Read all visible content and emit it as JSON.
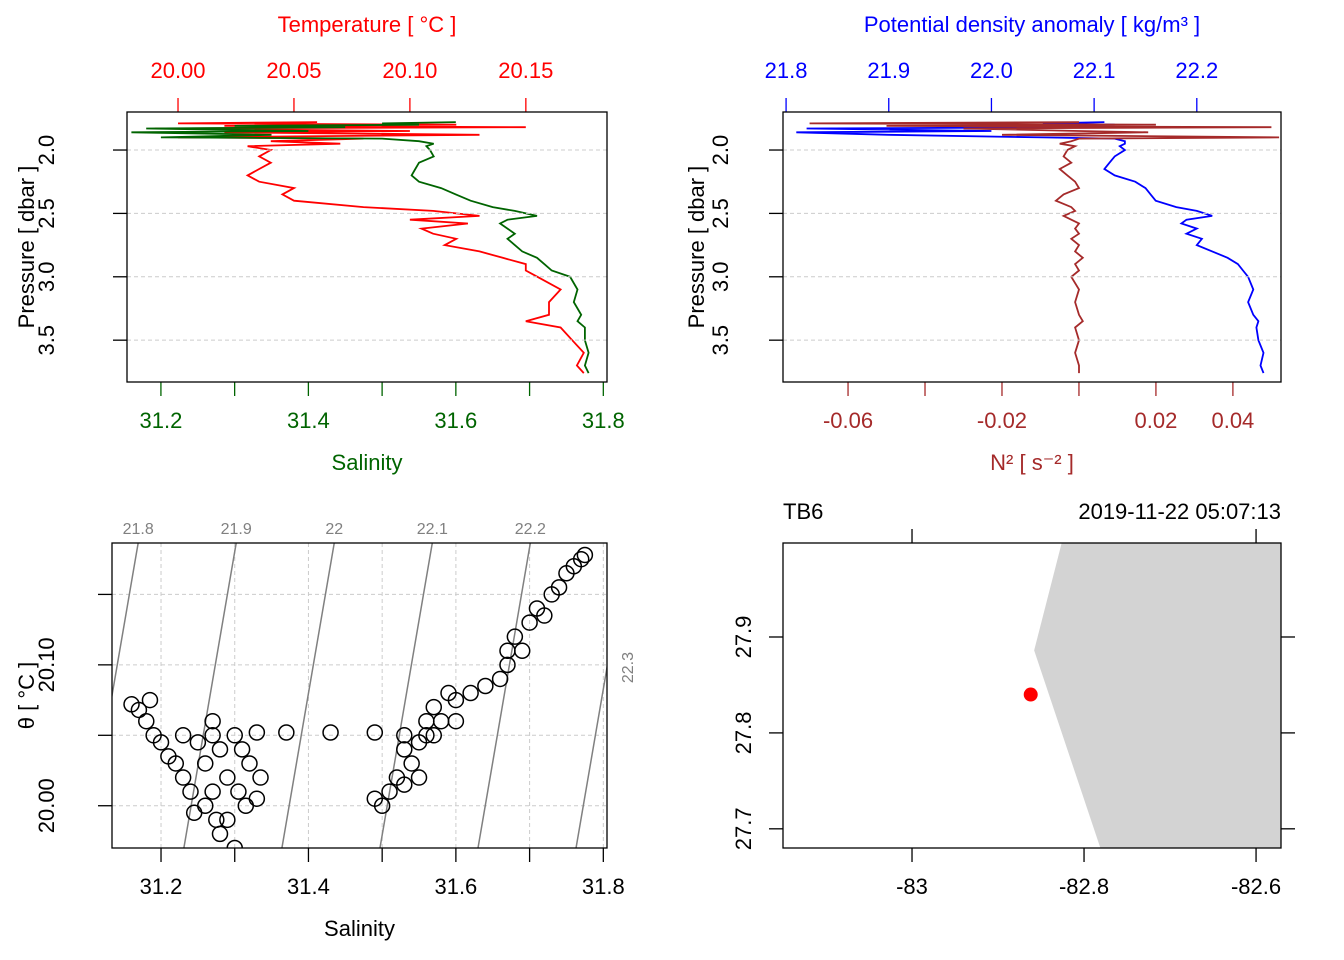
{
  "chart_data": [
    {
      "type": "profile",
      "y_label": "Pressure [ dbar ]",
      "ylim": [
        1.7,
        3.83
      ],
      "y_reversed": true,
      "yticks": [
        {
          "value": 2,
          "label": "2.0"
        },
        2.5,
        {
          "value": 3,
          "label": "3.0"
        },
        3.5
      ],
      "grid": true,
      "series": [
        {
          "name": "Temperature [ °C ]",
          "color": "#ff0000",
          "axis": "top",
          "xlim": [
            19.978,
            20.185
          ],
          "xticks": [
            {
              "value": 20,
              "label": "20.00"
            },
            20.05,
            {
              "value": 20.1,
              "label": "20.10"
            },
            20.15
          ],
          "pressure": [
            1.78,
            1.79,
            1.8,
            1.81,
            1.82,
            1.83,
            1.85,
            1.86,
            1.88,
            1.9,
            1.91,
            1.93,
            1.95,
            1.97,
            2.0,
            2.05,
            2.1,
            2.15,
            2.2,
            2.25,
            2.3,
            2.35,
            2.4,
            2.45,
            2.48,
            2.52,
            2.55,
            2.58,
            2.62,
            2.66,
            2.7,
            2.75,
            2.8,
            2.85,
            2.9,
            2.95,
            3.0,
            3.1,
            3.2,
            3.3,
            3.35,
            3.4,
            3.5,
            3.6,
            3.7,
            3.76
          ],
          "values": [
            20.06,
            20.0,
            20.12,
            20.02,
            20.15,
            19.99,
            20.1,
            20.02,
            20.13,
            20.0,
            20.08,
            20.04,
            20.07,
            20.03,
            20.04,
            20.035,
            20.04,
            20.035,
            20.03,
            20.035,
            20.05,
            20.045,
            20.05,
            20.08,
            20.11,
            20.13,
            20.1,
            20.125,
            20.105,
            20.11,
            20.12,
            20.115,
            20.13,
            20.14,
            20.15,
            20.15,
            20.155,
            20.165,
            20.16,
            20.16,
            20.15,
            20.165,
            20.17,
            20.175,
            20.172,
            20.175
          ]
        },
        {
          "name": "Salinity",
          "color": "#006400",
          "axis": "bottom",
          "xlim": [
            31.154,
            31.805
          ],
          "xticks": [
            31.2,
            31.4,
            31.6,
            31.8
          ],
          "xminorticks": [
            31.3,
            31.5,
            31.7
          ],
          "pressure": [
            1.78,
            1.79,
            1.8,
            1.81,
            1.82,
            1.83,
            1.85,
            1.86,
            1.88,
            1.9,
            1.91,
            1.93,
            1.95,
            1.97,
            2.0,
            2.05,
            2.1,
            2.15,
            2.2,
            2.25,
            2.3,
            2.35,
            2.4,
            2.45,
            2.48,
            2.52,
            2.55,
            2.58,
            2.62,
            2.66,
            2.7,
            2.75,
            2.8,
            2.85,
            2.9,
            2.95,
            3.0,
            3.1,
            3.2,
            3.3,
            3.35,
            3.4,
            3.5,
            3.6,
            3.7,
            3.76
          ],
          "values": [
            31.6,
            31.5,
            31.55,
            31.3,
            31.45,
            31.18,
            31.4,
            31.16,
            31.35,
            31.2,
            31.5,
            31.55,
            31.57,
            31.56,
            31.565,
            31.57,
            31.55,
            31.545,
            31.54,
            31.55,
            31.58,
            31.6,
            31.62,
            31.65,
            31.68,
            31.71,
            31.67,
            31.66,
            31.67,
            31.68,
            31.67,
            31.68,
            31.69,
            31.71,
            31.72,
            31.73,
            31.755,
            31.765,
            31.76,
            31.77,
            31.765,
            31.775,
            31.775,
            31.78,
            31.775,
            31.78
          ]
        }
      ]
    },
    {
      "type": "profile",
      "y_label": "Pressure [ dbar ]",
      "ylim": [
        1.7,
        3.83
      ],
      "y_reversed": true,
      "yticks": [
        {
          "value": 2,
          "label": "2.0"
        },
        2.5,
        {
          "value": 3,
          "label": "3.0"
        },
        3.5
      ],
      "grid": true,
      "series": [
        {
          "name": "Potential density anomaly [ kg/m³ ]",
          "color": "#0000ff",
          "axis": "top",
          "xlim": [
            21.797,
            22.282
          ],
          "xticks": [
            21.8,
            21.9,
            {
              "value": 22,
              "label": "22.0"
            },
            22.1,
            22.2
          ],
          "pressure": [
            1.78,
            1.79,
            1.8,
            1.81,
            1.82,
            1.83,
            1.85,
            1.86,
            1.88,
            1.9,
            1.91,
            1.93,
            1.95,
            1.97,
            2.0,
            2.05,
            2.1,
            2.15,
            2.2,
            2.25,
            2.3,
            2.35,
            2.4,
            2.45,
            2.48,
            2.52,
            2.55,
            2.58,
            2.62,
            2.66,
            2.7,
            2.75,
            2.8,
            2.85,
            2.9,
            2.95,
            3.0,
            3.1,
            3.2,
            3.3,
            3.35,
            3.4,
            3.5,
            3.6,
            3.7,
            3.76
          ],
          "values": [
            22.11,
            22.05,
            22.12,
            21.95,
            22.1,
            21.82,
            22.0,
            21.81,
            21.9,
            22.05,
            22.12,
            22.13,
            22.13,
            22.125,
            22.13,
            22.12,
            22.115,
            22.11,
            22.12,
            22.14,
            22.15,
            22.155,
            22.16,
            22.18,
            22.2,
            22.215,
            22.19,
            22.185,
            22.2,
            22.19,
            22.205,
            22.2,
            22.215,
            22.23,
            22.24,
            22.245,
            22.25,
            22.255,
            22.25,
            22.255,
            22.26,
            22.258,
            22.26,
            22.265,
            22.262,
            22.265
          ]
        },
        {
          "name": "N² [ s⁻² ]",
          "color": "#a52a2a",
          "axis": "bottom",
          "xlim": [
            -0.0769,
            0.0525
          ],
          "xticks": [
            -0.06,
            -0.02,
            0.02,
            0.04
          ],
          "xminorticks": [
            -0.04,
            0
          ],
          "pressure": [
            1.78,
            1.79,
            1.8,
            1.81,
            1.82,
            1.83,
            1.85,
            1.86,
            1.88,
            1.9,
            1.91,
            1.93,
            1.95,
            1.97,
            2.0,
            2.05,
            2.1,
            2.15,
            2.2,
            2.25,
            2.3,
            2.35,
            2.4,
            2.45,
            2.48,
            2.52,
            2.55,
            2.58,
            2.62,
            2.66,
            2.7,
            2.75,
            2.8,
            2.85,
            2.9,
            2.95,
            3.0,
            3.1,
            3.2,
            3.3,
            3.35,
            3.4,
            3.5,
            3.6,
            3.7,
            3.76
          ],
          "values": [
            0,
            -0.07,
            0.02,
            -0.05,
            0.05,
            -0.03,
            0,
            0.018,
            -0.02,
            0.052,
            0,
            -0.002,
            -0.005,
            -0.001,
            -0.003,
            -0.004,
            -0.002,
            -0.005,
            -0.003,
            -0.001,
            0,
            -0.004,
            -0.006,
            -0.002,
            -0.001,
            -0.004,
            -0.002,
            0,
            -0.001,
            0,
            -0.002,
            0,
            -0.001,
            0.001,
            -0.001,
            0,
            -0.002,
            0,
            -0.001,
            0,
            0.001,
            -0.001,
            0,
            -0.001,
            0,
            0
          ]
        }
      ]
    },
    {
      "type": "ts",
      "x_label": "Salinity",
      "y_label": "θ [ °C ]",
      "xlim": [
        31.1335,
        31.805
      ],
      "ylim": [
        19.97,
        20.1865
      ],
      "xticks": [
        31.2,
        31.4,
        31.6,
        31.8
      ],
      "xminorticks": [
        31.3,
        31.5,
        31.7
      ],
      "yticks": [
        {
          "value": 20,
          "label": "20.00"
        },
        {
          "value": 20.1,
          "label": "20.10"
        }
      ],
      "yminorticks": [
        20.05,
        20.15
      ],
      "grid": true,
      "isopycnals": {
        "levels": [
          21.8,
          21.9,
          22,
          22.1,
          22.2,
          22.3
        ],
        "salinity_bottom": [
          31.098,
          31.231,
          31.364,
          31.497,
          31.63,
          31.763
        ],
        "salinity_top": [
          31.169,
          31.302,
          31.435,
          31.568,
          31.701,
          31.834
        ],
        "color": "#808080"
      },
      "salinity": [
        31.16,
        31.17,
        31.18,
        31.185,
        31.19,
        31.2,
        31.21,
        31.22,
        31.23,
        31.24,
        31.245,
        31.25,
        31.26,
        31.26,
        31.27,
        31.27,
        31.275,
        31.28,
        31.28,
        31.29,
        31.29,
        31.3,
        31.3,
        31.305,
        31.31,
        31.315,
        31.32,
        31.33,
        31.335,
        31.23,
        31.27,
        31.33,
        31.37,
        31.43,
        31.49,
        31.53,
        31.56,
        31.49,
        31.5,
        31.51,
        31.52,
        31.53,
        31.53,
        31.54,
        31.55,
        31.55,
        31.56,
        31.57,
        31.57,
        31.58,
        31.59,
        31.6,
        31.6,
        31.62,
        31.64,
        31.66,
        31.67,
        31.67,
        31.68,
        31.69,
        31.7,
        31.71,
        31.72,
        31.73,
        31.74,
        31.75,
        31.76,
        31.77,
        31.775
      ],
      "theta": [
        20.072,
        20.068,
        20.06,
        20.075,
        20.05,
        20.045,
        20.035,
        20.03,
        20.02,
        20.01,
        19.995,
        20.045,
        20.03,
        20.0,
        20.06,
        20.01,
        19.99,
        20.04,
        19.98,
        20.02,
        19.99,
        20.05,
        19.97,
        20.01,
        20.04,
        20.0,
        20.03,
        20.005,
        20.02,
        20.05,
        20.05,
        20.052,
        20.052,
        20.052,
        20.052,
        20.05,
        20.05,
        20.005,
        20.0,
        20.01,
        20.02,
        20.015,
        20.04,
        20.03,
        20.045,
        20.02,
        20.06,
        20.05,
        20.07,
        20.06,
        20.08,
        20.06,
        20.075,
        20.08,
        20.085,
        20.09,
        20.11,
        20.1,
        20.12,
        20.11,
        20.13,
        20.14,
        20.135,
        20.15,
        20.155,
        20.165,
        20.17,
        20.175,
        20.178
      ]
    },
    {
      "type": "map",
      "station": "TB6",
      "time": "2019-11-22 05:07:13",
      "xlim": [
        -83.15,
        -82.571
      ],
      "ylim": [
        27.68,
        27.998
      ],
      "xticks": [
        -83,
        -82.8,
        -82.6
      ],
      "yticks": [
        27.7,
        27.8,
        27.9
      ],
      "coastline": {
        "lon": [
          -82.826,
          -82.858,
          -82.781,
          -82.571,
          -82.571
        ],
        "lat": [
          27.998,
          27.886,
          27.68,
          27.68,
          27.998
        ],
        "color": "#d3d3d3"
      },
      "point": {
        "lon": -82.862,
        "lat": 27.84,
        "color": "#ff0000"
      }
    }
  ]
}
